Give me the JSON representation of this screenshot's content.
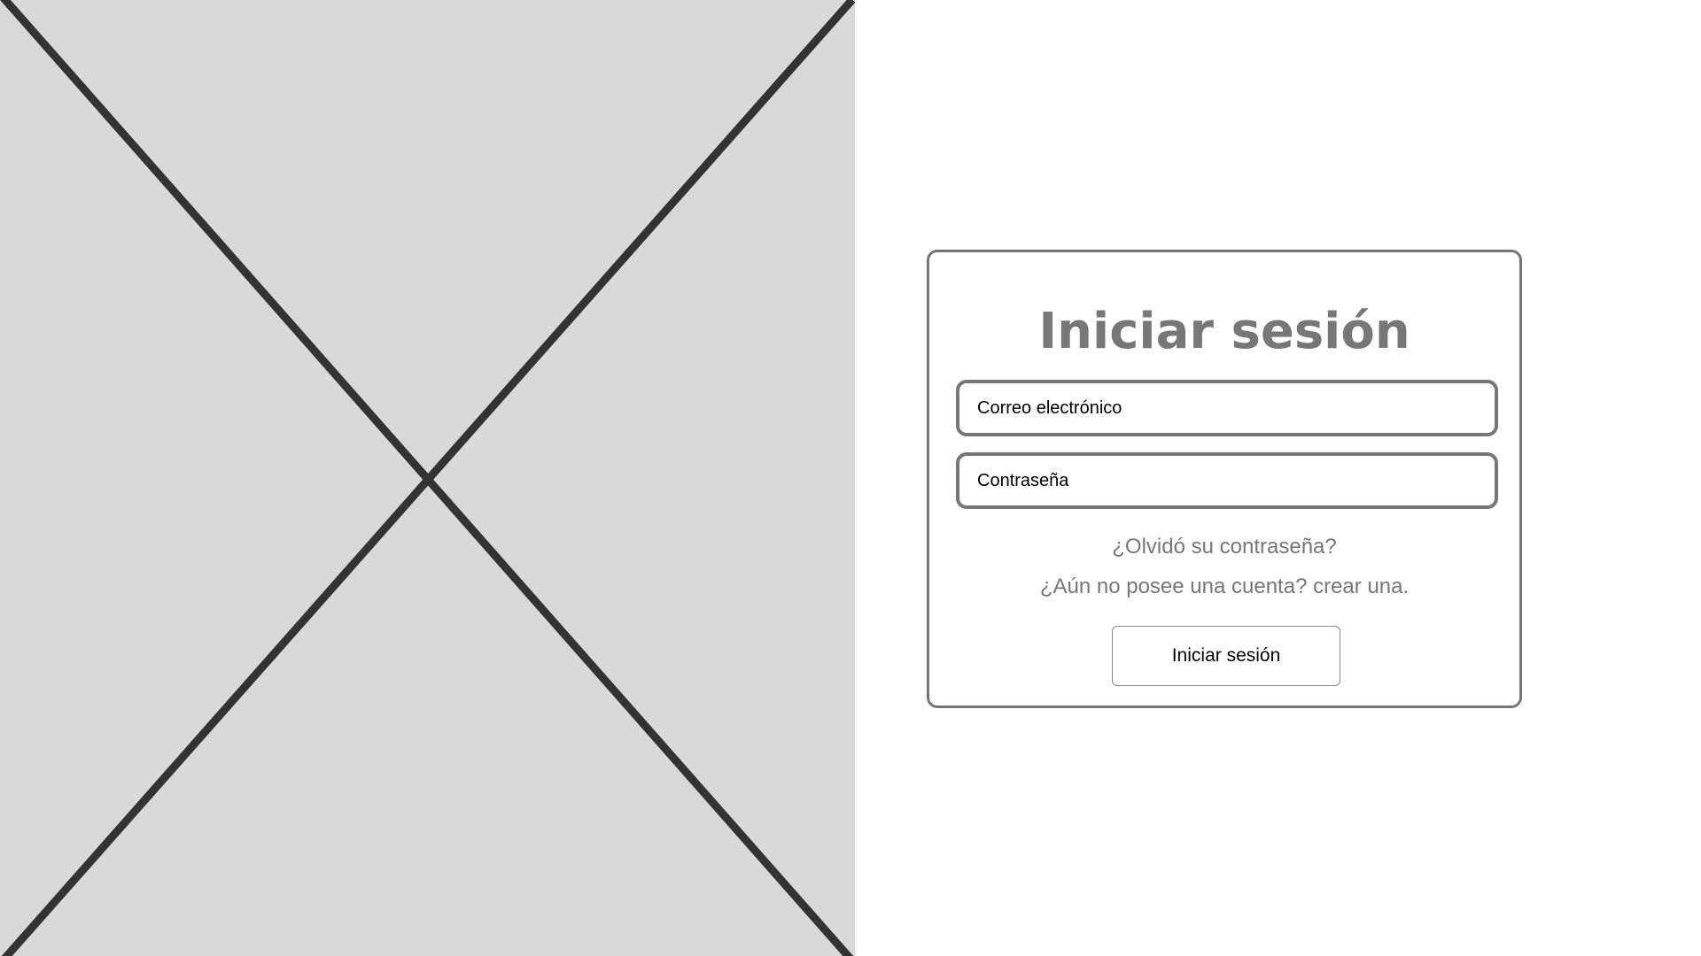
{
  "placeholder_image": {
    "icon": "image-placeholder-x-icon",
    "colors": {
      "fill": "#d9d9d9",
      "stroke": "#333333"
    }
  },
  "login": {
    "title": "Iniciar sesión",
    "email_placeholder": "Correo electrónico",
    "password_placeholder": "Contraseña",
    "forgot_password": "¿Olvidó su contraseña?",
    "no_account": "¿Aún no posee una cuenta?",
    "create_account": "crear una.",
    "submit_label": "Iniciar sesión",
    "colors": {
      "border": "#767676",
      "muted_text": "#777777"
    }
  }
}
